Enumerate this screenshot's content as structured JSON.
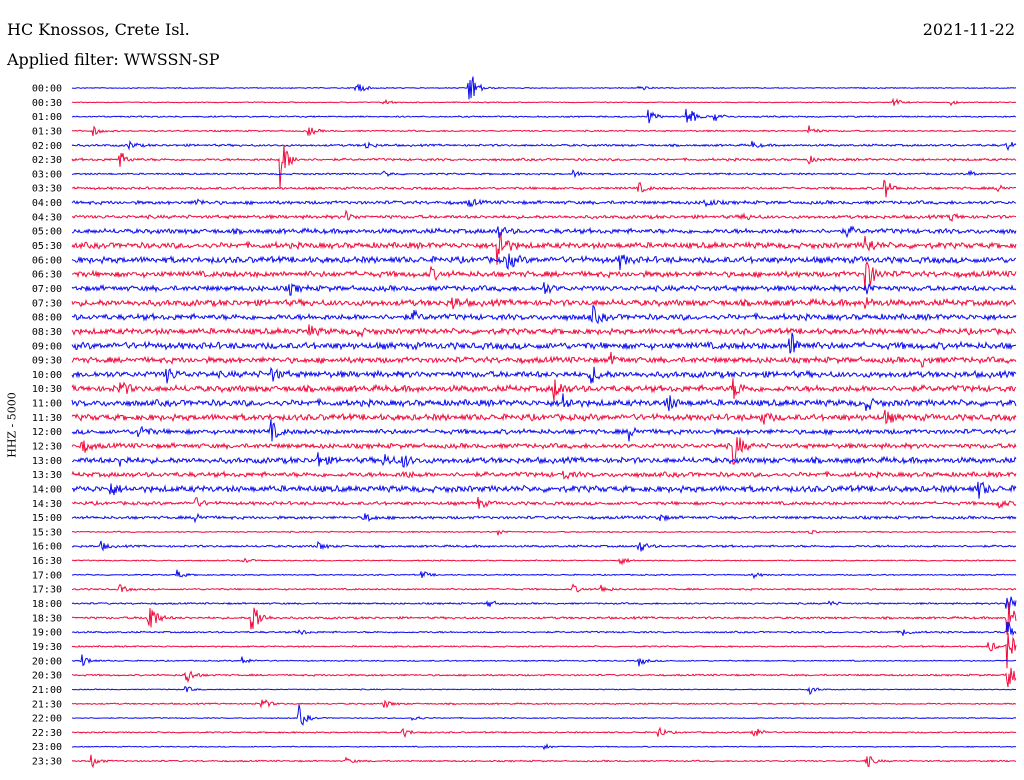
{
  "header": {
    "station": "HC Knossos, Crete Isl.",
    "filter": "Applied filter: WWSSN-SP",
    "date": "2021-11-22"
  },
  "colors": {
    "blue": "#0a0af0",
    "red": "#f00a3c"
  },
  "chart_data": {
    "type": "line",
    "title": "",
    "ylabel": "HHZ - 5000",
    "xlabel": "",
    "grid": false,
    "legend": "none",
    "rows": [
      {
        "label": "00:00",
        "color": "blue",
        "noise": 0.4,
        "events": [
          [
            0.3,
            10
          ],
          [
            0.42,
            26
          ],
          [
            0.6,
            4
          ]
        ]
      },
      {
        "label": "00:30",
        "color": "red",
        "noise": 0.4,
        "events": [
          [
            0.33,
            4
          ],
          [
            0.87,
            5
          ],
          [
            0.93,
            3
          ]
        ]
      },
      {
        "label": "01:00",
        "color": "blue",
        "noise": 0.6,
        "events": [
          [
            0.61,
            8
          ],
          [
            0.65,
            18
          ],
          [
            0.68,
            6
          ]
        ]
      },
      {
        "label": "01:30",
        "color": "red",
        "noise": 0.6,
        "events": [
          [
            0.02,
            7
          ],
          [
            0.25,
            6
          ],
          [
            0.78,
            6
          ]
        ]
      },
      {
        "label": "02:00",
        "color": "blue",
        "noise": 0.9,
        "events": [
          [
            0.06,
            5
          ],
          [
            0.31,
            5
          ],
          [
            0.72,
            4
          ],
          [
            0.99,
            6
          ]
        ]
      },
      {
        "label": "02:30",
        "color": "red",
        "noise": 1.0,
        "events": [
          [
            0.05,
            10
          ],
          [
            0.22,
            32
          ],
          [
            0.78,
            4
          ]
        ]
      },
      {
        "label": "03:00",
        "color": "blue",
        "noise": 0.7,
        "events": [
          [
            0.33,
            4
          ],
          [
            0.53,
            4
          ],
          [
            0.95,
            4
          ]
        ]
      },
      {
        "label": "03:30",
        "color": "red",
        "noise": 1.0,
        "events": [
          [
            0.6,
            6
          ],
          [
            0.86,
            12
          ],
          [
            0.98,
            5
          ]
        ]
      },
      {
        "label": "04:00",
        "color": "blue",
        "noise": 1.4,
        "events": [
          [
            0.13,
            5
          ],
          [
            0.42,
            5
          ],
          [
            0.67,
            6
          ]
        ]
      },
      {
        "label": "04:30",
        "color": "red",
        "noise": 1.4,
        "events": [
          [
            0.29,
            5
          ],
          [
            0.71,
            5
          ],
          [
            0.93,
            5
          ]
        ]
      },
      {
        "label": "05:00",
        "color": "blue",
        "noise": 2.0,
        "events": [
          [
            0.45,
            8
          ],
          [
            0.82,
            6
          ]
        ]
      },
      {
        "label": "05:30",
        "color": "red",
        "noise": 2.4,
        "events": [
          [
            0.45,
            28
          ],
          [
            0.84,
            12
          ]
        ]
      },
      {
        "label": "06:00",
        "color": "blue",
        "noise": 2.6,
        "events": [
          [
            0.46,
            12
          ],
          [
            0.58,
            8
          ]
        ]
      },
      {
        "label": "06:30",
        "color": "red",
        "noise": 2.4,
        "events": [
          [
            0.38,
            6
          ],
          [
            0.84,
            24
          ]
        ]
      },
      {
        "label": "07:00",
        "color": "blue",
        "noise": 2.2,
        "events": [
          [
            0.23,
            6
          ],
          [
            0.5,
            6
          ],
          [
            0.84,
            8
          ]
        ]
      },
      {
        "label": "07:30",
        "color": "red",
        "noise": 2.6,
        "events": [
          [
            0.4,
            10
          ],
          [
            0.84,
            6
          ]
        ]
      },
      {
        "label": "08:00",
        "color": "blue",
        "noise": 2.4,
        "events": [
          [
            0.36,
            6
          ],
          [
            0.55,
            12
          ]
        ]
      },
      {
        "label": "08:30",
        "color": "red",
        "noise": 2.4,
        "events": [
          [
            0.25,
            6
          ],
          [
            0.3,
            6
          ]
        ]
      },
      {
        "label": "09:00",
        "color": "blue",
        "noise": 2.8,
        "events": [
          [
            0.76,
            18
          ]
        ]
      },
      {
        "label": "09:30",
        "color": "red",
        "noise": 2.4,
        "events": [
          [
            0.57,
            6
          ],
          [
            0.9,
            6
          ]
        ]
      },
      {
        "label": "10:00",
        "color": "blue",
        "noise": 2.6,
        "events": [
          [
            0.1,
            8
          ],
          [
            0.21,
            8
          ],
          [
            0.55,
            10
          ]
        ]
      },
      {
        "label": "10:30",
        "color": "red",
        "noise": 2.6,
        "events": [
          [
            0.05,
            10
          ],
          [
            0.51,
            14
          ],
          [
            0.7,
            12
          ]
        ]
      },
      {
        "label": "11:00",
        "color": "blue",
        "noise": 2.6,
        "events": [
          [
            0.52,
            10
          ],
          [
            0.63,
            10
          ],
          [
            0.84,
            8
          ]
        ]
      },
      {
        "label": "11:30",
        "color": "red",
        "noise": 2.6,
        "events": [
          [
            0.73,
            8
          ],
          [
            0.86,
            8
          ]
        ]
      },
      {
        "label": "12:00",
        "color": "blue",
        "noise": 2.0,
        "events": [
          [
            0.07,
            10
          ],
          [
            0.21,
            12
          ],
          [
            0.59,
            8
          ]
        ]
      },
      {
        "label": "12:30",
        "color": "red",
        "noise": 2.0,
        "events": [
          [
            0.01,
            8
          ],
          [
            0.7,
            24
          ]
        ]
      },
      {
        "label": "13:00",
        "color": "blue",
        "noise": 2.4,
        "events": [
          [
            0.05,
            6
          ],
          [
            0.26,
            8
          ],
          [
            0.33,
            8
          ],
          [
            0.35,
            8
          ]
        ]
      },
      {
        "label": "13:30",
        "color": "red",
        "noise": 2.0,
        "events": [
          [
            0.35,
            5
          ],
          [
            0.52,
            5
          ]
        ]
      },
      {
        "label": "14:00",
        "color": "blue",
        "noise": 2.6,
        "events": [
          [
            0.04,
            8
          ],
          [
            0.96,
            10
          ]
        ]
      },
      {
        "label": "14:30",
        "color": "red",
        "noise": 1.4,
        "events": [
          [
            0.13,
            6
          ],
          [
            0.43,
            6
          ],
          [
            0.98,
            6
          ]
        ]
      },
      {
        "label": "15:00",
        "color": "blue",
        "noise": 1.2,
        "events": [
          [
            0.13,
            6
          ],
          [
            0.31,
            6
          ],
          [
            0.62,
            5
          ]
        ]
      },
      {
        "label": "15:30",
        "color": "red",
        "noise": 0.5,
        "events": [
          [
            0.45,
            4
          ],
          [
            0.78,
            4
          ]
        ]
      },
      {
        "label": "16:00",
        "color": "blue",
        "noise": 0.9,
        "events": [
          [
            0.03,
            5
          ],
          [
            0.26,
            5
          ],
          [
            0.6,
            8
          ]
        ]
      },
      {
        "label": "16:30",
        "color": "red",
        "noise": 0.5,
        "events": [
          [
            0.18,
            4
          ],
          [
            0.58,
            5
          ]
        ]
      },
      {
        "label": "17:00",
        "color": "blue",
        "noise": 0.5,
        "events": [
          [
            0.11,
            6
          ],
          [
            0.37,
            5
          ],
          [
            0.72,
            4
          ]
        ]
      },
      {
        "label": "17:30",
        "color": "red",
        "noise": 0.7,
        "events": [
          [
            0.05,
            5
          ],
          [
            0.53,
            5
          ],
          [
            0.56,
            5
          ]
        ]
      },
      {
        "label": "18:00",
        "color": "blue",
        "noise": 0.7,
        "events": [
          [
            0.44,
            5
          ],
          [
            0.8,
            4
          ],
          [
            0.99,
            20
          ]
        ]
      },
      {
        "label": "18:30",
        "color": "red",
        "noise": 0.9,
        "events": [
          [
            0.08,
            26
          ],
          [
            0.19,
            28
          ],
          [
            0.99,
            26
          ]
        ]
      },
      {
        "label": "19:00",
        "color": "blue",
        "noise": 0.7,
        "events": [
          [
            0.24,
            4
          ],
          [
            0.88,
            5
          ],
          [
            0.99,
            16
          ]
        ]
      },
      {
        "label": "19:30",
        "color": "red",
        "noise": 0.6,
        "events": [
          [
            0.97,
            8
          ],
          [
            0.99,
            24
          ]
        ]
      },
      {
        "label": "20:00",
        "color": "blue",
        "noise": 0.5,
        "events": [
          [
            0.01,
            8
          ],
          [
            0.18,
            5
          ],
          [
            0.6,
            6
          ]
        ]
      },
      {
        "label": "20:30",
        "color": "red",
        "noise": 0.7,
        "events": [
          [
            0.12,
            12
          ],
          [
            0.99,
            20
          ]
        ]
      },
      {
        "label": "21:00",
        "color": "blue",
        "noise": 0.4,
        "events": [
          [
            0.12,
            4
          ],
          [
            0.78,
            6
          ]
        ]
      },
      {
        "label": "21:30",
        "color": "red",
        "noise": 0.6,
        "events": [
          [
            0.2,
            8
          ],
          [
            0.33,
            5
          ]
        ]
      },
      {
        "label": "22:00",
        "color": "blue",
        "noise": 0.4,
        "events": [
          [
            0.24,
            14
          ],
          [
            0.36,
            4
          ]
        ]
      },
      {
        "label": "22:30",
        "color": "red",
        "noise": 0.6,
        "events": [
          [
            0.35,
            6
          ],
          [
            0.62,
            7
          ],
          [
            0.72,
            10
          ]
        ]
      },
      {
        "label": "23:00",
        "color": "blue",
        "noise": 0.4,
        "events": [
          [
            0.5,
            3
          ]
        ]
      },
      {
        "label": "23:30",
        "color": "red",
        "noise": 0.6,
        "events": [
          [
            0.02,
            8
          ],
          [
            0.29,
            4
          ],
          [
            0.84,
            10
          ]
        ]
      }
    ]
  }
}
